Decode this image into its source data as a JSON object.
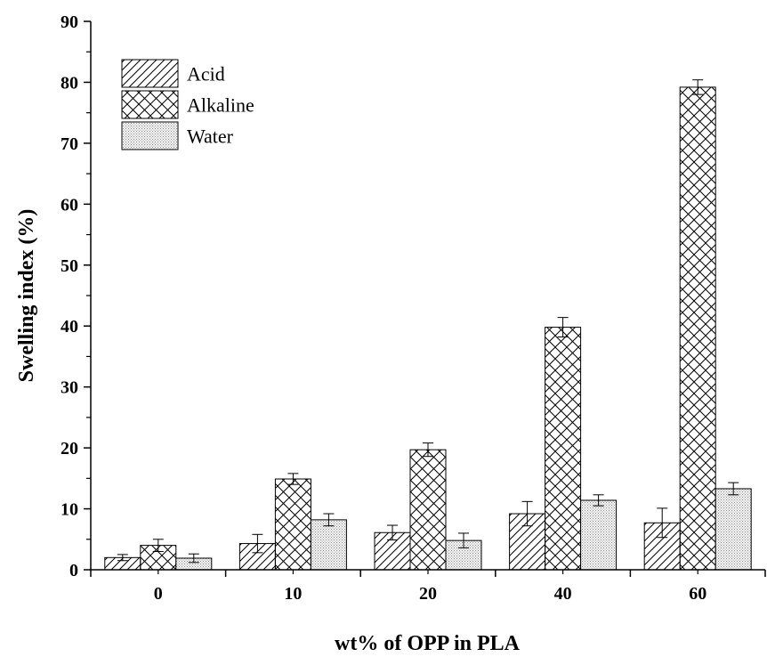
{
  "chart_data": {
    "type": "bar",
    "title": "",
    "xlabel": "wt% of OPP in PLA",
    "ylabel": "Swelling index (%)",
    "ylim": [
      0,
      90
    ],
    "yticks": [
      0,
      10,
      20,
      30,
      40,
      50,
      60,
      70,
      80,
      90
    ],
    "categories": [
      "0",
      "10",
      "20",
      "40",
      "60"
    ],
    "legend_position": "top-left",
    "series": [
      {
        "name": "Acid",
        "pattern": "diagonal-hatch",
        "values": [
          2.0,
          4.3,
          6.1,
          9.2,
          7.7
        ],
        "errors": [
          0.5,
          1.5,
          1.2,
          2.0,
          2.4
        ]
      },
      {
        "name": "Alkaline",
        "pattern": "cross-hatch",
        "values": [
          4.0,
          14.9,
          19.7,
          39.8,
          79.2
        ],
        "errors": [
          1.0,
          0.9,
          1.1,
          1.6,
          1.2
        ]
      },
      {
        "name": "Water",
        "pattern": "dots",
        "values": [
          1.9,
          8.2,
          4.8,
          11.4,
          13.3
        ],
        "errors": [
          0.7,
          1.0,
          1.2,
          0.9,
          1.0
        ]
      }
    ]
  }
}
